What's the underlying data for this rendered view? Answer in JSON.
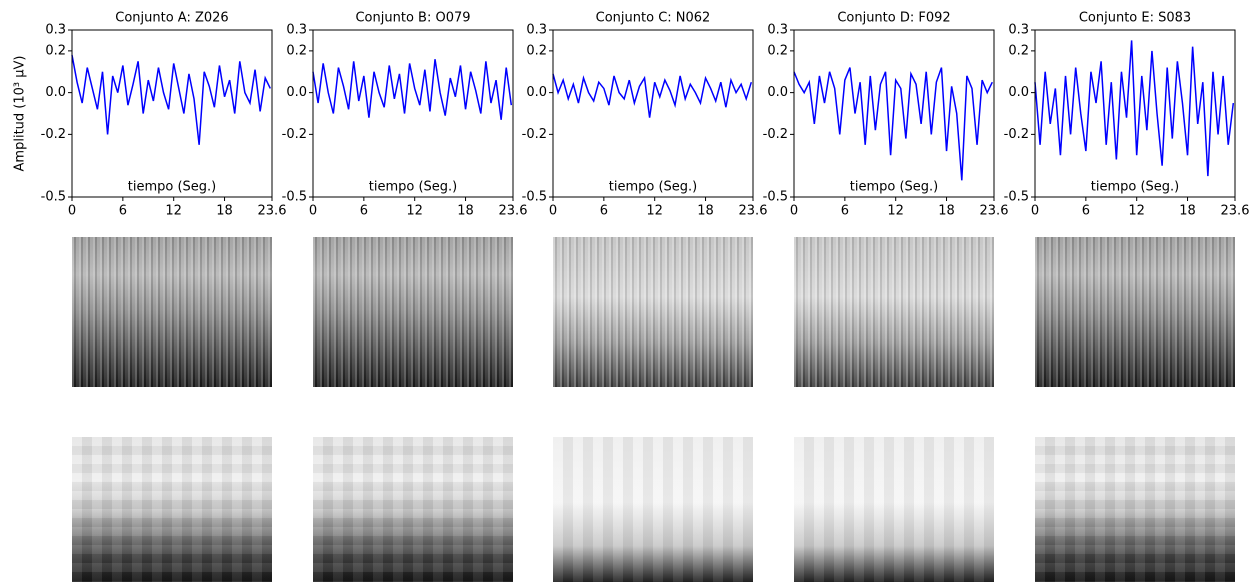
{
  "chart_data": [
    {
      "type": "line",
      "title": "Conjunto A: Z026",
      "xlabel": "tiempo (Seg.)",
      "ylabel": "Amplitud (10³ μV)",
      "color": "#0000ff",
      "xlim": [
        0,
        23.6
      ],
      "xticks": [
        0,
        6,
        12,
        18,
        23.6
      ],
      "ylim": [
        -0.5,
        0.3
      ],
      "yticks": [
        0.3,
        0.2,
        {
          "value": 0,
          "label": "0.0"
        },
        -0.2,
        -0.5
      ],
      "x": [
        0,
        0.6,
        1.2,
        1.8,
        2.4,
        3,
        3.6,
        4.2,
        4.8,
        5.4,
        6,
        6.6,
        7.2,
        7.8,
        8.4,
        9,
        9.6,
        10.2,
        10.8,
        11.4,
        12,
        12.6,
        13.2,
        13.8,
        14.4,
        15,
        15.6,
        16.2,
        16.8,
        17.4,
        18,
        18.6,
        19.2,
        19.8,
        20.4,
        21,
        21.6,
        22.2,
        22.8,
        23.4
      ],
      "values": [
        0.18,
        0.05,
        -0.05,
        0.12,
        0.02,
        -0.08,
        0.1,
        -0.2,
        0.08,
        0.0,
        0.13,
        -0.06,
        0.04,
        0.15,
        -0.1,
        0.06,
        -0.04,
        0.12,
        0.0,
        -0.08,
        0.14,
        0.02,
        -0.1,
        0.09,
        -0.03,
        -0.25,
        0.1,
        0.03,
        -0.07,
        0.13,
        -0.02,
        0.06,
        -0.1,
        0.15,
        0.0,
        -0.05,
        0.11,
        -0.09,
        0.07,
        0.02
      ]
    },
    {
      "type": "line",
      "title": "Conjunto B: O079",
      "xlabel": "tiempo (Seg.)",
      "color": "#0000ff",
      "xlim": [
        0,
        23.6
      ],
      "xticks": [
        0,
        6,
        12,
        18,
        23.6
      ],
      "ylim": [
        -0.5,
        0.3
      ],
      "yticks": [
        0.3,
        0.2,
        {
          "value": 0,
          "label": "0.0"
        },
        -0.2,
        -0.5
      ],
      "x": [
        0,
        0.6,
        1.2,
        1.8,
        2.4,
        3,
        3.6,
        4.2,
        4.8,
        5.4,
        6,
        6.6,
        7.2,
        7.8,
        8.4,
        9,
        9.6,
        10.2,
        10.8,
        11.4,
        12,
        12.6,
        13.2,
        13.8,
        14.4,
        15,
        15.6,
        16.2,
        16.8,
        17.4,
        18,
        18.6,
        19.2,
        19.8,
        20.4,
        21,
        21.6,
        22.2,
        22.8,
        23.4
      ],
      "values": [
        0.1,
        -0.05,
        0.14,
        0.0,
        -0.1,
        0.12,
        0.03,
        -0.08,
        0.15,
        -0.04,
        0.08,
        -0.12,
        0.1,
        0.0,
        -0.07,
        0.13,
        -0.03,
        0.09,
        -0.1,
        0.14,
        0.02,
        -0.06,
        0.11,
        -0.09,
        0.16,
        0.0,
        -0.11,
        0.07,
        -0.02,
        0.13,
        -0.08,
        0.1,
        0.01,
        -0.1,
        0.15,
        -0.05,
        0.06,
        -0.13,
        0.12,
        -0.06
      ]
    },
    {
      "type": "line",
      "title": "Conjunto C: N062",
      "xlabel": "tiempo (Seg.)",
      "color": "#0000ff",
      "xlim": [
        0,
        23.6
      ],
      "xticks": [
        0,
        6,
        12,
        18,
        23.6
      ],
      "ylim": [
        -0.5,
        0.3
      ],
      "yticks": [
        0.3,
        0.2,
        {
          "value": 0,
          "label": "0.0"
        },
        -0.2,
        -0.5
      ],
      "x": [
        0,
        0.6,
        1.2,
        1.8,
        2.4,
        3,
        3.6,
        4.2,
        4.8,
        5.4,
        6,
        6.6,
        7.2,
        7.8,
        8.4,
        9,
        9.6,
        10.2,
        10.8,
        11.4,
        12,
        12.6,
        13.2,
        13.8,
        14.4,
        15,
        15.6,
        16.2,
        16.8,
        17.4,
        18,
        18.6,
        19.2,
        19.8,
        20.4,
        21,
        21.6,
        22.2,
        22.8,
        23.4
      ],
      "values": [
        0.09,
        0.0,
        0.06,
        -0.03,
        0.04,
        -0.05,
        0.07,
        0.0,
        -0.04,
        0.05,
        0.02,
        -0.06,
        0.08,
        0.0,
        -0.03,
        0.06,
        -0.05,
        0.03,
        0.07,
        -0.12,
        0.05,
        -0.02,
        0.06,
        0.01,
        -0.06,
        0.08,
        -0.03,
        0.04,
        0.0,
        -0.05,
        0.07,
        0.02,
        -0.04,
        0.05,
        -0.07,
        0.06,
        0.0,
        0.04,
        -0.03,
        0.05
      ]
    },
    {
      "type": "line",
      "title": "Conjunto D: F092",
      "xlabel": "tiempo (Seg.)",
      "color": "#0000ff",
      "xlim": [
        0,
        23.6
      ],
      "xticks": [
        0,
        6,
        12,
        18,
        23.6
      ],
      "ylim": [
        -0.5,
        0.3
      ],
      "yticks": [
        0.3,
        0.2,
        {
          "value": 0,
          "label": "0.0"
        },
        -0.2,
        -0.5
      ],
      "x": [
        0,
        0.6,
        1.2,
        1.8,
        2.4,
        3,
        3.6,
        4.2,
        4.8,
        5.4,
        6,
        6.6,
        7.2,
        7.8,
        8.4,
        9,
        9.6,
        10.2,
        10.8,
        11.4,
        12,
        12.6,
        13.2,
        13.8,
        14.4,
        15,
        15.6,
        16.2,
        16.8,
        17.4,
        18,
        18.6,
        19.2,
        19.8,
        20.4,
        21,
        21.6,
        22.2,
        22.8,
        23.4
      ],
      "values": [
        0.1,
        0.04,
        0.0,
        0.05,
        -0.15,
        0.08,
        -0.05,
        0.1,
        0.02,
        -0.2,
        0.06,
        0.12,
        -0.1,
        0.05,
        -0.25,
        0.08,
        -0.18,
        0.04,
        0.1,
        -0.3,
        0.06,
        0.02,
        -0.22,
        0.09,
        0.04,
        -0.15,
        0.1,
        -0.2,
        0.05,
        0.12,
        -0.28,
        0.03,
        -0.1,
        -0.42,
        0.08,
        0.02,
        -0.25,
        0.06,
        0.0,
        0.05
      ]
    },
    {
      "type": "line",
      "title": "Conjunto E: S083",
      "xlabel": "tiempo (Seg.)",
      "color": "#0000ff",
      "xlim": [
        0,
        23.6
      ],
      "xticks": [
        0,
        6,
        12,
        18,
        23.6
      ],
      "ylim": [
        -0.5,
        0.3
      ],
      "yticks": [
        0.3,
        0.2,
        {
          "value": 0,
          "label": "0.0"
        },
        -0.2,
        -0.5
      ],
      "x": [
        0,
        0.6,
        1.2,
        1.8,
        2.4,
        3,
        3.6,
        4.2,
        4.8,
        5.4,
        6,
        6.6,
        7.2,
        7.8,
        8.4,
        9,
        9.6,
        10.2,
        10.8,
        11.4,
        12,
        12.6,
        13.2,
        13.8,
        14.4,
        15,
        15.6,
        16.2,
        16.8,
        17.4,
        18,
        18.6,
        19.2,
        19.8,
        20.4,
        21,
        21.6,
        22.2,
        22.8,
        23.4
      ],
      "values": [
        0.05,
        -0.25,
        0.1,
        -0.15,
        0.02,
        -0.3,
        0.08,
        -0.2,
        0.12,
        -0.1,
        -0.28,
        0.1,
        -0.05,
        0.15,
        -0.25,
        0.05,
        -0.32,
        0.1,
        -0.12,
        0.25,
        -0.3,
        0.08,
        -0.18,
        0.2,
        -0.1,
        -0.35,
        0.12,
        -0.22,
        0.15,
        -0.05,
        -0.3,
        0.22,
        -0.15,
        0.05,
        -0.4,
        0.1,
        -0.2,
        0.08,
        -0.25,
        -0.05
      ]
    }
  ]
}
